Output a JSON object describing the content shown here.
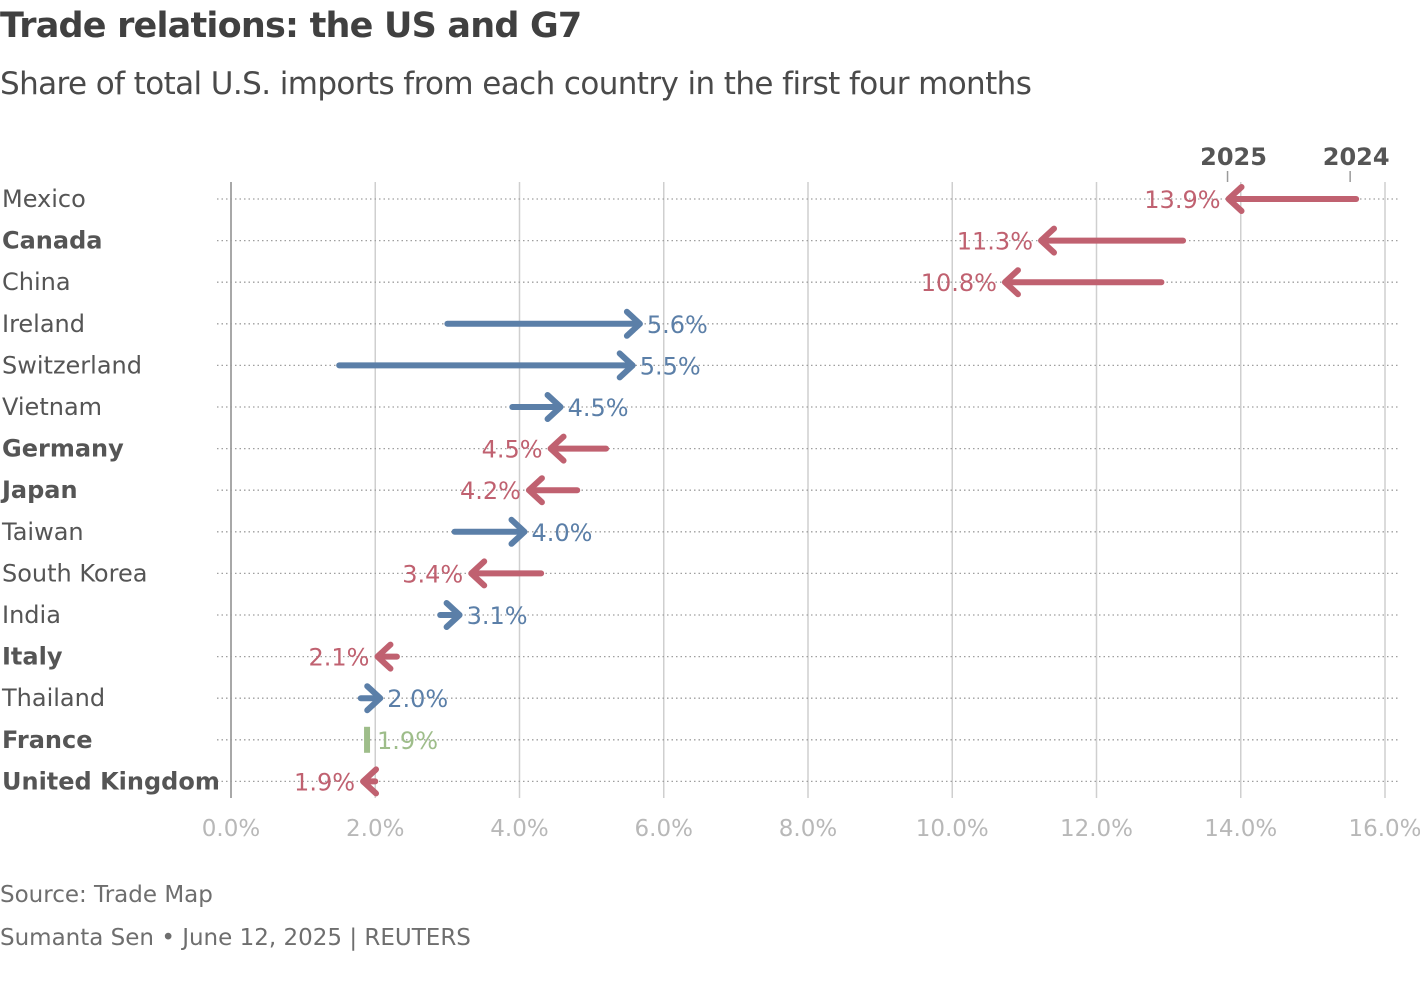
{
  "header": {
    "title": "Trade relations: the US and G7",
    "subtitle": "Share of total U.S. imports from each country in the first four months"
  },
  "footer": {
    "source": "Source: Trade Map",
    "byline": "Sumanta Sen • June 12, 2025 | REUTERS"
  },
  "colors": {
    "decrease": "#c06170",
    "increase": "#5b7fa8",
    "unchanged": "#9ebd8a",
    "grid": "#bdbdbd",
    "axis_label": "#b8b8b8",
    "country_label": "#555555"
  },
  "chart_data": {
    "type": "arrow_dot_plot",
    "title": "Trade relations: the US and G7",
    "subtitle": "Share of total U.S. imports from each country in the first four months",
    "xlabel": "",
    "ylabel": "",
    "xlim": [
      0,
      16
    ],
    "x_ticks": [
      0,
      2,
      4,
      6,
      8,
      10,
      12,
      14,
      16
    ],
    "x_tick_labels": [
      "0.0%",
      "2.0%",
      "4.0%",
      "6.0%",
      "8.0%",
      "10.0%",
      "12.0%",
      "14.0%",
      "16.0%"
    ],
    "series_names": {
      "start": "2024",
      "end": "2025"
    },
    "legend_labels": [
      {
        "label": "2025",
        "value": 13.9
      },
      {
        "label": "2024",
        "value": 15.6
      }
    ],
    "rows": [
      {
        "country": "Mexico",
        "g7": false,
        "v2024": 15.6,
        "v2025": 13.9,
        "label": "13.9%"
      },
      {
        "country": "Canada",
        "g7": true,
        "v2024": 13.2,
        "v2025": 11.3,
        "label": "11.3%"
      },
      {
        "country": "China",
        "g7": false,
        "v2024": 12.9,
        "v2025": 10.8,
        "label": "10.8%"
      },
      {
        "country": "Ireland",
        "g7": false,
        "v2024": 3.0,
        "v2025": 5.6,
        "label": "5.6%"
      },
      {
        "country": "Switzerland",
        "g7": false,
        "v2024": 1.5,
        "v2025": 5.5,
        "label": "5.5%"
      },
      {
        "country": "Vietnam",
        "g7": false,
        "v2024": 3.9,
        "v2025": 4.5,
        "label": "4.5%"
      },
      {
        "country": "Germany",
        "g7": true,
        "v2024": 5.2,
        "v2025": 4.5,
        "label": "4.5%"
      },
      {
        "country": "Japan",
        "g7": true,
        "v2024": 4.8,
        "v2025": 4.2,
        "label": "4.2%"
      },
      {
        "country": "Taiwan",
        "g7": false,
        "v2024": 3.1,
        "v2025": 4.0,
        "label": "4.0%"
      },
      {
        "country": "South Korea",
        "g7": false,
        "v2024": 4.3,
        "v2025": 3.4,
        "label": "3.4%"
      },
      {
        "country": "India",
        "g7": false,
        "v2024": 2.9,
        "v2025": 3.1,
        "label": "3.1%"
      },
      {
        "country": "Italy",
        "g7": true,
        "v2024": 2.3,
        "v2025": 2.1,
        "label": "2.1%"
      },
      {
        "country": "Thailand",
        "g7": false,
        "v2024": 1.8,
        "v2025": 2.0,
        "label": "2.0%"
      },
      {
        "country": "France",
        "g7": true,
        "v2024": 1.9,
        "v2025": 1.9,
        "label": "1.9%"
      },
      {
        "country": "United Kingdom",
        "g7": true,
        "v2024": 2.0,
        "v2025": 1.9,
        "label": "1.9%"
      }
    ]
  }
}
